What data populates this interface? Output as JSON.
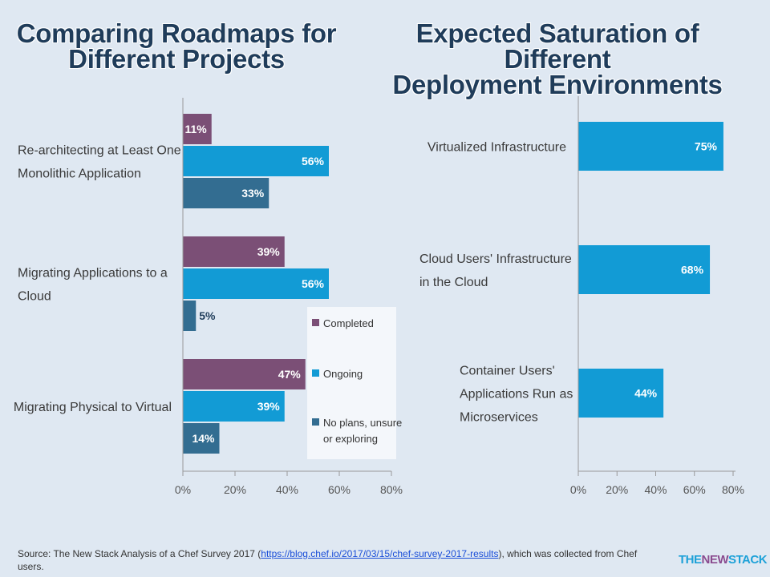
{
  "colors": {
    "completed": "#7b4f76",
    "ongoing": "#129bd5",
    "no_plans": "#336d91",
    "background": "#dfe8f2",
    "title": "#1f3c5a"
  },
  "chart_data": [
    {
      "type": "bar",
      "orientation": "horizontal",
      "title_lines": [
        "Comparing Roadmaps for",
        "Different Projects"
      ],
      "categories": [
        [
          "Re-architecting at Least One",
          "Monolithic Application"
        ],
        [
          "Migrating Applications to a",
          "Cloud"
        ],
        [
          "Migrating Physical to Virtual"
        ]
      ],
      "series": [
        {
          "name": "Completed",
          "values": [
            11,
            39,
            47
          ],
          "labels": [
            "11%",
            "39%",
            "47%"
          ]
        },
        {
          "name": "Ongoing",
          "values": [
            56,
            56,
            39
          ],
          "labels": [
            "56%",
            "56%",
            "39%"
          ]
        },
        {
          "name": "No plans, unsure or exploring",
          "legend_lines": [
            "No plans, unsure",
            "or exploring"
          ],
          "values": [
            33,
            5,
            14
          ],
          "labels": [
            "33%",
            "5%",
            "14%"
          ]
        }
      ],
      "xlim": [
        0,
        80
      ],
      "xticks": [
        "0%",
        "20%",
        "40%",
        "60%",
        "80%"
      ],
      "legend_position": "bottom-right"
    },
    {
      "type": "bar",
      "orientation": "horizontal",
      "title_lines": [
        "Expected Saturation of Different",
        "Deployment Environments"
      ],
      "categories": [
        [
          "Virtualized Infrastructure"
        ],
        [
          "Cloud Users' Infrastructure",
          "in the Cloud"
        ],
        [
          "Container Users'",
          "Applications Run as",
          "Microservices"
        ]
      ],
      "series": [
        {
          "values": [
            75,
            68,
            44
          ],
          "labels": [
            "75%",
            "68%",
            "44%"
          ]
        }
      ],
      "xlim": [
        0,
        80
      ],
      "xticks": [
        "0%",
        "20%",
        "40%",
        "60%",
        "80%"
      ]
    }
  ],
  "source": {
    "prefix": "Source: The New Stack Analysis of a Chef Survey 2017 (",
    "link": "https://blog.chef.io/2017/03/15/chef-survey-2017-results",
    "suffix": "), which was collected from Chef users."
  },
  "brand": {
    "part1": "THE",
    "part2": "NEW",
    "part3": "STACK"
  }
}
